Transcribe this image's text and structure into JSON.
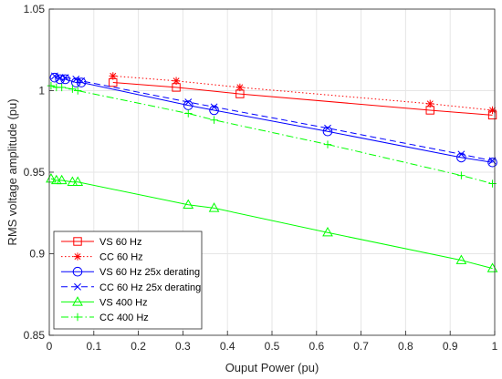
{
  "chart_data": {
    "type": "line",
    "title": "",
    "xlabel": "Ouput Power (pu)",
    "ylabel": "RMS voltage amplitude (pu)",
    "xlim": [
      0,
      1
    ],
    "ylim": [
      0.85,
      1.05
    ],
    "xticks": [
      "0",
      "0.1",
      "0.2",
      "0.3",
      "0.4",
      "0.5",
      "0.6",
      "0.7",
      "0.8",
      "0.9",
      "1"
    ],
    "yticks": [
      "0.85",
      "0.9",
      "0.95",
      "1",
      "1.05"
    ],
    "grid": true,
    "legend_position": "bottom-left",
    "series": [
      {
        "name": "VS 60 Hz",
        "color": "#ff0000",
        "line": "solid",
        "marker": "square",
        "x": [
          0.143,
          0.285,
          0.428,
          0.855,
          0.995
        ],
        "y": [
          1.005,
          1.002,
          0.998,
          0.988,
          0.985
        ]
      },
      {
        "name": "CC 60 Hz",
        "color": "#ff0000",
        "line": "dotted",
        "marker": "asterisk",
        "x": [
          0.143,
          0.285,
          0.428,
          0.855,
          0.995
        ],
        "y": [
          1.009,
          1.006,
          1.002,
          0.992,
          0.988
        ]
      },
      {
        "name": "VS 60 Hz 25x derating",
        "color": "#0000ff",
        "line": "solid",
        "marker": "circle",
        "x": [
          0.012,
          0.024,
          0.036,
          0.06,
          0.072,
          0.312,
          0.37,
          0.625,
          0.925,
          0.995
        ],
        "y": [
          1.008,
          1.007,
          1.007,
          1.005,
          1.005,
          0.991,
          0.988,
          0.975,
          0.959,
          0.956
        ]
      },
      {
        "name": "CC 60 Hz 25x derating",
        "color": "#0000ff",
        "line": "dashed",
        "marker": "x",
        "x": [
          0.012,
          0.024,
          0.036,
          0.06,
          0.072,
          0.312,
          0.37,
          0.625,
          0.925,
          0.995
        ],
        "y": [
          1.009,
          1.008,
          1.008,
          1.007,
          1.006,
          0.993,
          0.99,
          0.977,
          0.961,
          0.957
        ]
      },
      {
        "name": "VS 400 Hz",
        "color": "#00ff00",
        "line": "solid",
        "marker": "triangle",
        "x": [
          0.004,
          0.016,
          0.028,
          0.052,
          0.064,
          0.312,
          0.37,
          0.625,
          0.925,
          0.995
        ],
        "y": [
          0.946,
          0.945,
          0.945,
          0.944,
          0.944,
          0.93,
          0.928,
          0.913,
          0.896,
          0.891
        ]
      },
      {
        "name": "CC 400 Hz",
        "color": "#00ff00",
        "line": "dashdot",
        "marker": "plus",
        "x": [
          0.004,
          0.016,
          0.028,
          0.052,
          0.064,
          0.312,
          0.37,
          0.625,
          0.925,
          0.995
        ],
        "y": [
          1.003,
          1.002,
          1.002,
          1.001,
          1.0,
          0.986,
          0.982,
          0.967,
          0.948,
          0.943
        ]
      }
    ]
  }
}
